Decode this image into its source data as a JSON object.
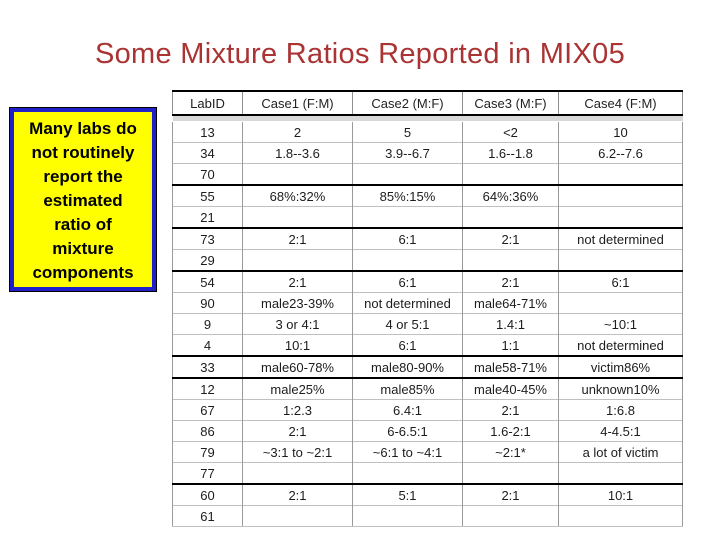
{
  "slide": {
    "title": "Some Mixture Ratios Reported in MIX05"
  },
  "callout": {
    "text": "Many labs do not routinely report the estimated ratio of mixture components",
    "lines": [
      "Many labs do",
      "not routinely",
      "report the",
      "estimated",
      "ratio of",
      "mixture",
      "components"
    ]
  },
  "table": {
    "columns": [
      "LabID",
      "Case1 (F:M)",
      "Case2 (M:F)",
      "Case3 (M:F)",
      "Case4 (F:M)"
    ],
    "rows": [
      {
        "id": "13",
        "cells": [
          "2",
          "5",
          "<2",
          "10"
        ],
        "thick_top": false
      },
      {
        "id": "34",
        "cells": [
          "1.8--3.6",
          "3.9--6.7",
          "1.6--1.8",
          "6.2--7.6"
        ],
        "thick_top": false
      },
      {
        "id": "70",
        "cells": [
          "",
          "",
          "",
          ""
        ],
        "thick_top": false
      },
      {
        "id": "55",
        "cells": [
          "68%:32%",
          "85%:15%",
          "64%:36%",
          ""
        ],
        "thick_top": true
      },
      {
        "id": "21",
        "cells": [
          "",
          "",
          "",
          ""
        ],
        "thick_top": false
      },
      {
        "id": "73",
        "cells": [
          "2:1",
          "6:1",
          "2:1",
          "not determined"
        ],
        "thick_top": true
      },
      {
        "id": "29",
        "cells": [
          "",
          "",
          "",
          ""
        ],
        "thick_top": false
      },
      {
        "id": "54",
        "cells": [
          "2:1",
          "6:1",
          "2:1",
          "6:1"
        ],
        "thick_top": true
      },
      {
        "id": "90",
        "cells": [
          "male23-39%",
          "not determined",
          "male64-71%",
          ""
        ],
        "thick_top": false
      },
      {
        "id": "9",
        "cells": [
          "3 or 4:1",
          "4 or 5:1",
          "1.4:1",
          "~10:1"
        ],
        "thick_top": false
      },
      {
        "id": "4",
        "cells": [
          "10:1",
          "6:1",
          "1:1",
          "not determined"
        ],
        "thick_top": false
      },
      {
        "id": "33",
        "cells": [
          "male60-78%",
          "male80-90%",
          "male58-71%",
          "victim86%"
        ],
        "thick_top": true
      },
      {
        "id": "12",
        "cells": [
          "male25%",
          "male85%",
          "male40-45%",
          "unknown10%"
        ],
        "thick_top": true
      },
      {
        "id": "67",
        "cells": [
          "1:2.3",
          "6.4:1",
          "2:1",
          "1:6.8"
        ],
        "thick_top": false
      },
      {
        "id": "86",
        "cells": [
          "2:1",
          "6-6.5:1",
          "1.6-2:1",
          "4-4.5:1"
        ],
        "thick_top": false
      },
      {
        "id": "79",
        "cells": [
          "~3:1 to ~2:1",
          "~6:1 to ~4:1",
          "~2:1*",
          "a lot of victim"
        ],
        "thick_top": false
      },
      {
        "id": "77",
        "cells": [
          "",
          "",
          "",
          ""
        ],
        "thick_top": false
      },
      {
        "id": "60",
        "cells": [
          "2:1",
          "5:1",
          "2:1",
          "10:1"
        ],
        "thick_top": true
      },
      {
        "id": "61",
        "cells": [
          "",
          "",
          "",
          ""
        ],
        "thick_top": false
      }
    ]
  },
  "colors": {
    "title_text": "#AA3333",
    "callout_bg": "#FFFF00",
    "callout_border": "#2121C8",
    "callout_text": "#000000",
    "table_grid": "#9a9a9a",
    "table_group_line": "#000000"
  }
}
